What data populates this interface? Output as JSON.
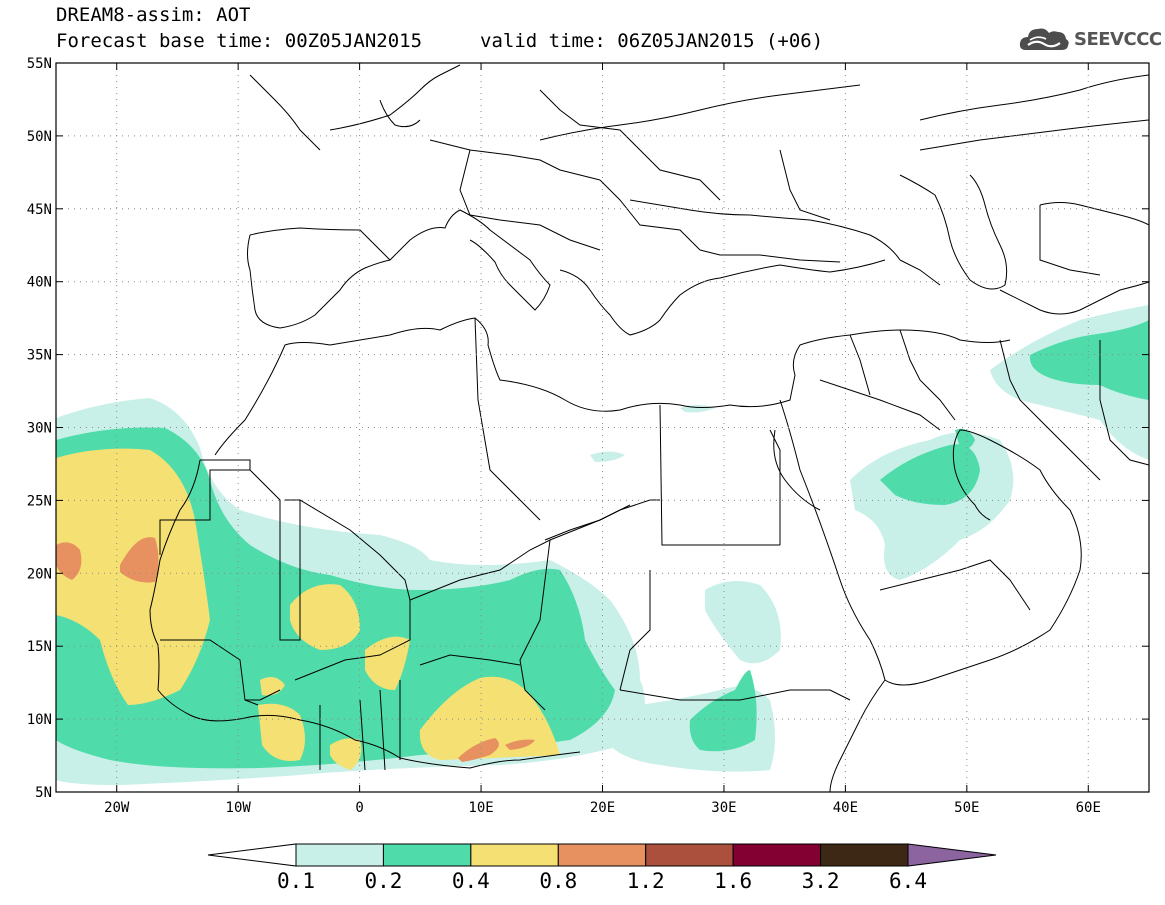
{
  "header": {
    "title": "DREAM8-assim: AOT",
    "base_time": "Forecast base time: 00Z05JAN2015",
    "valid_time": "valid time: 06Z05JAN2015 (+06)"
  },
  "logo": {
    "text": "SEEVCCC",
    "icon": "cloud-icon"
  },
  "map": {
    "lon_range": [
      -25,
      65
    ],
    "lat_range": [
      5,
      55
    ],
    "lat_ticks": [
      {
        "v": 55,
        "label": "55N"
      },
      {
        "v": 50,
        "label": "50N"
      },
      {
        "v": 45,
        "label": "45N"
      },
      {
        "v": 40,
        "label": "40N"
      },
      {
        "v": 35,
        "label": "35N"
      },
      {
        "v": 30,
        "label": "30N"
      },
      {
        "v": 25,
        "label": "25N"
      },
      {
        "v": 20,
        "label": "20N"
      },
      {
        "v": 15,
        "label": "15N"
      },
      {
        "v": 10,
        "label": "10N"
      },
      {
        "v": 5,
        "label": "5N"
      }
    ],
    "lon_ticks": [
      {
        "v": -20,
        "label": "20W"
      },
      {
        "v": -10,
        "label": "10W"
      },
      {
        "v": 0,
        "label": "0"
      },
      {
        "v": 10,
        "label": "10E"
      },
      {
        "v": 20,
        "label": "20E"
      },
      {
        "v": 30,
        "label": "30E"
      },
      {
        "v": 40,
        "label": "40E"
      },
      {
        "v": 50,
        "label": "50E"
      },
      {
        "v": 60,
        "label": "60E"
      }
    ]
  },
  "colorbar": {
    "labels": [
      "0.1",
      "0.2",
      "0.4",
      "0.8",
      "1.2",
      "1.6",
      "3.2",
      "6.4"
    ],
    "colors": [
      "#ffffff",
      "#c8f0e8",
      "#50dcaa",
      "#f5e173",
      "#e6915f",
      "#aa503c",
      "#820032",
      "#3c2814",
      "#8c64a0"
    ]
  }
}
